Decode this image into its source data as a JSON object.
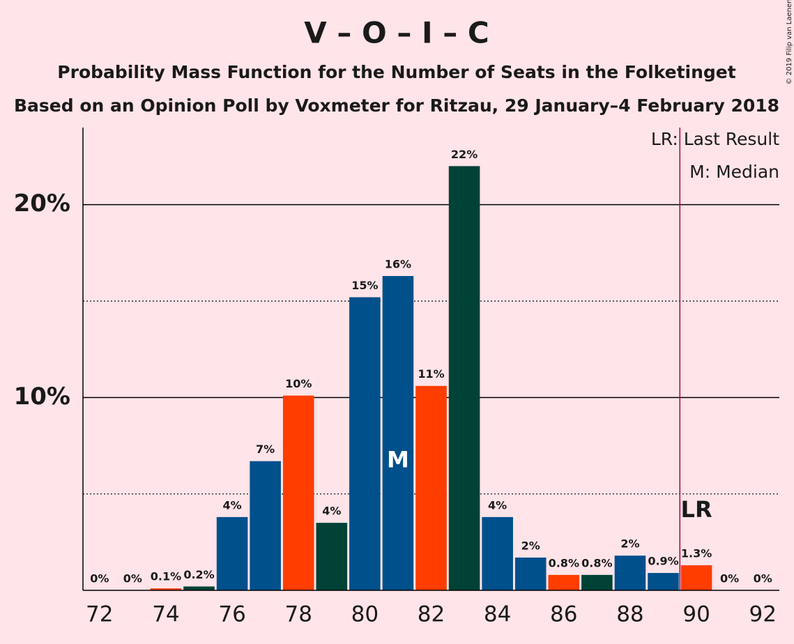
{
  "chart_data": {
    "type": "bar",
    "title": "V – O – I – C",
    "subtitle": "Probability Mass Function for the Number of Seats in the Folketinget",
    "subtitle2": "Based on an Opinion Poll by Voxmeter for Ritzau, 29 January–4 February 2018",
    "copyright": "© 2019 Filip van Laenen",
    "categories": [
      72,
      null,
      74,
      null,
      76,
      null,
      78,
      null,
      80,
      null,
      82,
      null,
      84,
      null,
      86,
      null,
      88,
      null,
      90,
      null,
      92
    ],
    "values": [
      0,
      0,
      0.1,
      0.2,
      3.8,
      6.7,
      10.1,
      3.5,
      15.2,
      16.3,
      10.6,
      22.0,
      3.8,
      1.7,
      0.8,
      0.8,
      1.8,
      0.9,
      1.3,
      0,
      0
    ],
    "value_labels": [
      "0%",
      "0%",
      "0.1%",
      "0.2%",
      "4%",
      "7%",
      "10%",
      "4%",
      "15%",
      "16%",
      "11%",
      "22%",
      "4%",
      "2%",
      "0.8%",
      "0.8%",
      "2%",
      "0.9%",
      "1.3%",
      "0%",
      "0%"
    ],
    "colors": [
      "#00508c",
      "#00508c",
      "#ff3d00",
      "#004236",
      "#00508c",
      "#00508c",
      "#ff3d00",
      "#004236",
      "#00508c",
      "#00508c",
      "#ff3d00",
      "#004236",
      "#00508c",
      "#00508c",
      "#ff3d00",
      "#004236",
      "#00508c",
      "#00508c",
      "#ff3d00",
      "#004236",
      "#00508c"
    ],
    "ylim": [
      0,
      24
    ],
    "yticks": [
      {
        "value": 10,
        "label": "10%"
      },
      {
        "value": 20,
        "label": "20%"
      }
    ],
    "minor_yticks": [
      5,
      15
    ],
    "median": {
      "index": 9,
      "label": "M"
    },
    "last_result": {
      "index": 18,
      "label": "LR",
      "color": "#b0003c"
    },
    "legend": [
      "LR: Last Result",
      "M: Median"
    ]
  }
}
